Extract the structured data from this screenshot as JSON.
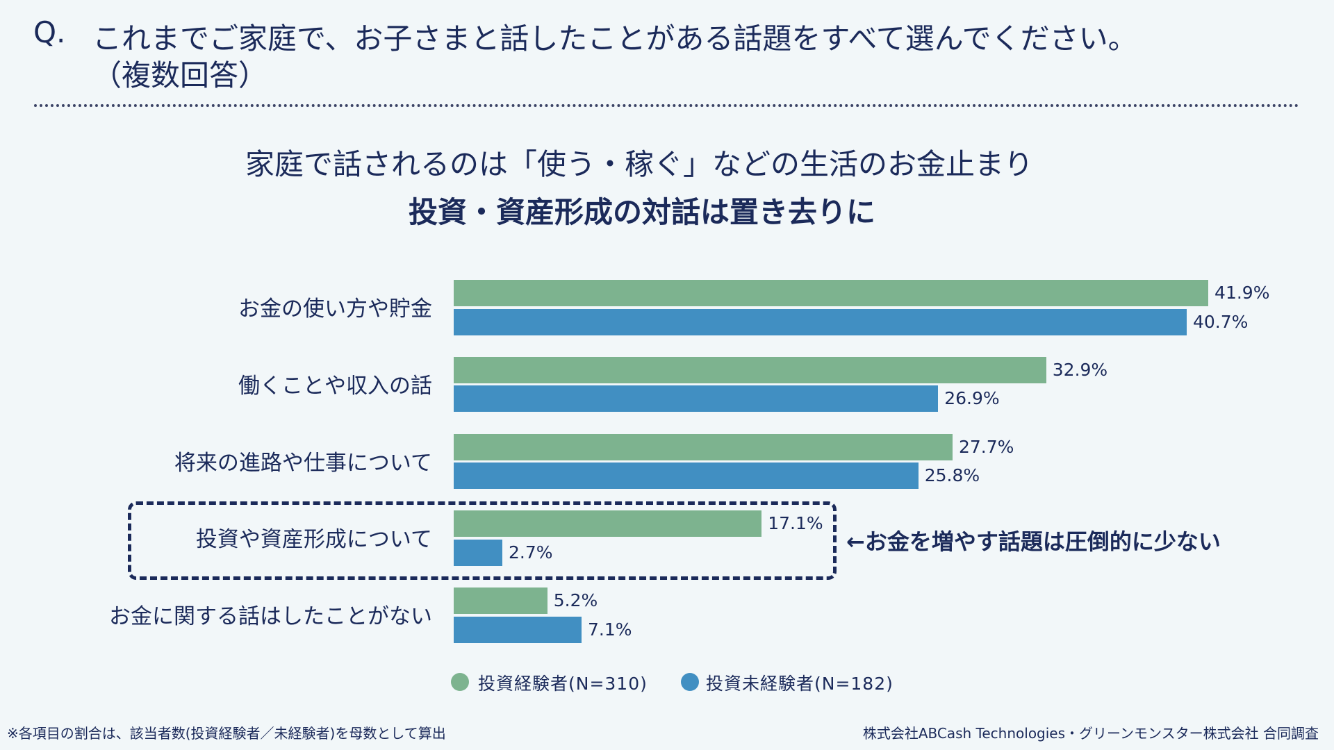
{
  "header": {
    "q_mark": "Q.",
    "question_line1": "これまでご家庭で、お子さまと話したことがある話題をすべて選んでください。",
    "question_line2": "（複数回答）"
  },
  "headline": {
    "line1": "家庭で話されるのは「使う・稼ぐ」などの生活のお金止まり",
    "line2": "投資・資産形成の対話は置き去りに"
  },
  "annotation": "←お金を増やす話題は圧倒的に少ない",
  "colors": {
    "experienced": "#7db38f",
    "inexperienced": "#418fc2",
    "text": "#1b2a5a",
    "background": "#f2f7f9"
  },
  "chart_data": {
    "type": "bar",
    "orientation": "horizontal",
    "categories": [
      "お金の使い方や貯金",
      "働くことや収入の話",
      "将来の進路や仕事について",
      "投資や資産形成について",
      "お金に関する話はしたことがない"
    ],
    "series": [
      {
        "name": "投資経験者(N=310)",
        "values": [
          41.9,
          32.9,
          27.7,
          17.1,
          5.2
        ],
        "labels": [
          "41.9%",
          "32.9%",
          "27.7%",
          "17.1%",
          "5.2%"
        ],
        "color": "#7db38f"
      },
      {
        "name": "投資未経験者(N=182)",
        "values": [
          40.7,
          26.9,
          25.8,
          2.7,
          7.1
        ],
        "labels": [
          "40.7%",
          "26.9%",
          "25.8%",
          "2.7%",
          "7.1%"
        ],
        "color": "#418fc2"
      }
    ],
    "unit": "%",
    "legend": "bottom",
    "grid": false,
    "highlighted_category": "投資や資産形成について"
  },
  "footer": {
    "note": "※各項目の割合は、該当者数(投資経験者／未経験者)を母数として算出",
    "credit": "株式会社ABCash Technologies・グリーンモンスター株式会社 合同調査"
  }
}
